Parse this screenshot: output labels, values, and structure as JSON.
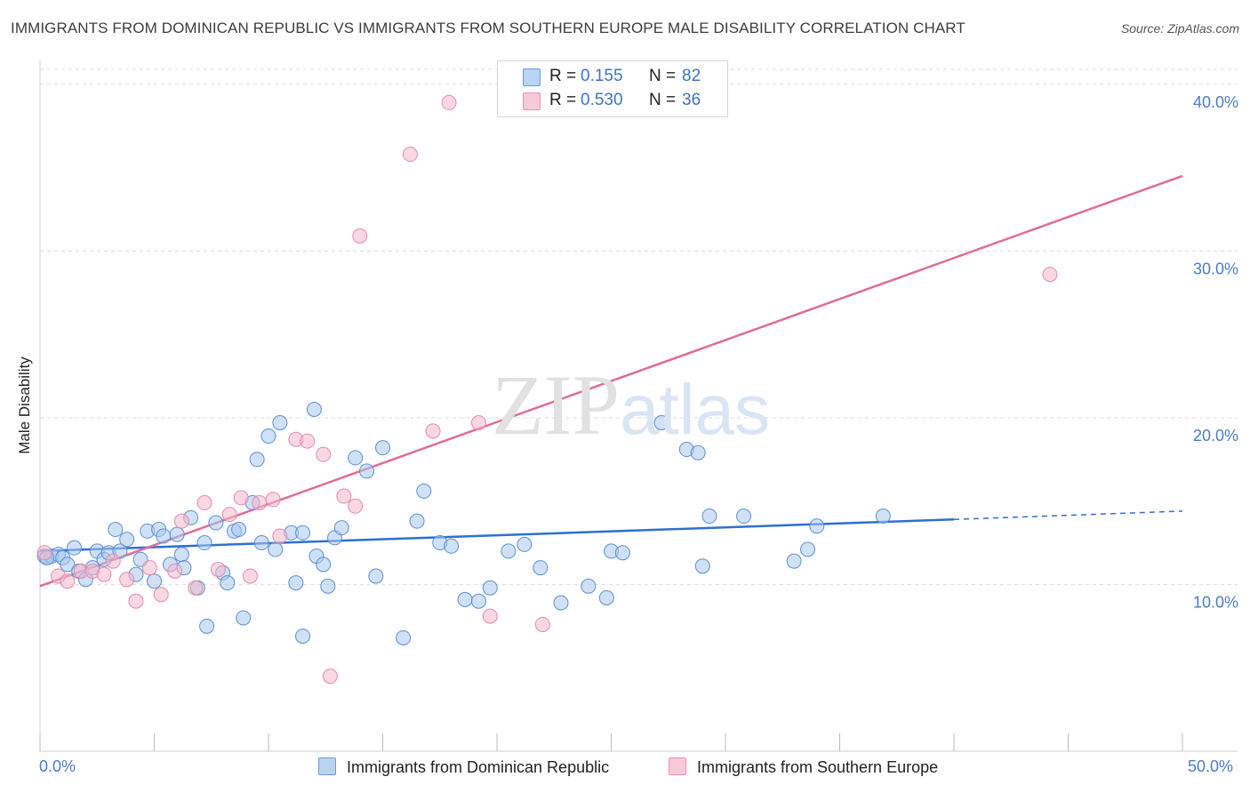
{
  "title": "IMMIGRANTS FROM DOMINICAN REPUBLIC VS IMMIGRANTS FROM SOUTHERN EUROPE MALE DISABILITY CORRELATION CHART",
  "source": "Source: ZipAtlas.com",
  "watermark": {
    "zip": "ZIP",
    "atlas": "atlas"
  },
  "legend": {
    "rows": [
      {
        "r_label": "R =",
        "r_value": "0.155",
        "n_label": "N =",
        "n_value": "82"
      },
      {
        "r_label": "R =",
        "r_value": "0.530",
        "n_label": "N =",
        "n_value": "36"
      }
    ]
  },
  "bottom_legend": {
    "series1": "Immigrants from Dominican Republic",
    "series2": "Immigrants from Southern Europe"
  },
  "x_end_labels": {
    "min": "0.0%",
    "max": "50.0%"
  },
  "colors": {
    "blue_fill": "#a9c8ef",
    "blue_stroke": "#5b8fd4",
    "blue_line": "#2f6fcf",
    "pink_fill": "#f5b8cc",
    "pink_stroke": "#e68aa8",
    "pink_line": "#e06c95",
    "grid": "#dddddd",
    "tick_label": "#4a7cc7"
  },
  "chart_data": {
    "type": "scatter",
    "title": "IMMIGRANTS FROM DOMINICAN REPUBLIC VS IMMIGRANTS FROM SOUTHERN EUROPE MALE DISABILITY CORRELATION CHART",
    "xlabel": "",
    "ylabel": "Male Disability",
    "xlim": [
      0,
      50
    ],
    "ylim": [
      0,
      41
    ],
    "y_ticks": [
      10,
      20,
      30,
      40
    ],
    "y_tick_labels": [
      "10.0%",
      "20.0%",
      "30.0%",
      "40.0%"
    ],
    "x_ticks": [
      0,
      5,
      10,
      15,
      20,
      25,
      30,
      35,
      40,
      45,
      50
    ],
    "grid": true,
    "legend_position": "top-center",
    "series": [
      {
        "name": "Immigrants from Dominican Republic",
        "color": "blue",
        "R": 0.155,
        "N": 82,
        "points": [
          [
            0.2,
            11.7
          ],
          [
            0.5,
            11.7
          ],
          [
            0.8,
            11.8
          ],
          [
            1.0,
            11.6
          ],
          [
            1.2,
            11.2
          ],
          [
            1.5,
            12.2
          ],
          [
            1.7,
            10.8
          ],
          [
            2.0,
            10.3
          ],
          [
            2.3,
            11.0
          ],
          [
            2.5,
            12.0
          ],
          [
            2.8,
            11.5
          ],
          [
            3.0,
            11.9
          ],
          [
            3.3,
            13.3
          ],
          [
            3.5,
            12.0
          ],
          [
            3.8,
            12.7
          ],
          [
            4.2,
            10.6
          ],
          [
            4.4,
            11.5
          ],
          [
            4.7,
            13.2
          ],
          [
            5.0,
            10.2
          ],
          [
            5.2,
            13.3
          ],
          [
            5.4,
            12.9
          ],
          [
            5.7,
            11.2
          ],
          [
            6.0,
            13.0
          ],
          [
            6.2,
            11.8
          ],
          [
            6.3,
            11.0
          ],
          [
            6.6,
            14.0
          ],
          [
            6.9,
            9.8
          ],
          [
            7.2,
            12.5
          ],
          [
            7.3,
            7.5
          ],
          [
            7.7,
            13.7
          ],
          [
            8.0,
            10.7
          ],
          [
            8.2,
            10.1
          ],
          [
            8.5,
            13.2
          ],
          [
            8.7,
            13.3
          ],
          [
            8.9,
            8.0
          ],
          [
            9.3,
            14.9
          ],
          [
            9.5,
            17.5
          ],
          [
            9.7,
            12.5
          ],
          [
            10.0,
            18.9
          ],
          [
            10.3,
            12.1
          ],
          [
            10.5,
            19.7
          ],
          [
            11.0,
            13.1
          ],
          [
            11.2,
            10.1
          ],
          [
            11.5,
            13.1
          ],
          [
            11.5,
            6.9
          ],
          [
            12.0,
            20.5
          ],
          [
            12.1,
            11.7
          ],
          [
            12.4,
            11.2
          ],
          [
            12.6,
            9.9
          ],
          [
            12.9,
            12.8
          ],
          [
            13.2,
            13.4
          ],
          [
            13.8,
            17.6
          ],
          [
            14.3,
            16.8
          ],
          [
            14.7,
            10.5
          ],
          [
            15.0,
            18.2
          ],
          [
            15.9,
            6.8
          ],
          [
            16.5,
            13.8
          ],
          [
            16.8,
            15.6
          ],
          [
            17.5,
            12.5
          ],
          [
            18.0,
            12.3
          ],
          [
            18.6,
            9.1
          ],
          [
            19.2,
            9.0
          ],
          [
            19.7,
            9.8
          ],
          [
            20.5,
            12.0
          ],
          [
            21.2,
            12.4
          ],
          [
            21.9,
            11.0
          ],
          [
            22.8,
            8.9
          ],
          [
            24.0,
            9.9
          ],
          [
            24.8,
            9.2
          ],
          [
            25.0,
            12.0
          ],
          [
            25.5,
            11.9
          ],
          [
            27.2,
            19.7
          ],
          [
            28.3,
            18.1
          ],
          [
            28.8,
            17.9
          ],
          [
            29.0,
            11.1
          ],
          [
            29.3,
            14.1
          ],
          [
            30.8,
            14.1
          ],
          [
            33.0,
            11.4
          ],
          [
            33.6,
            12.1
          ],
          [
            34.0,
            13.5
          ],
          [
            36.9,
            14.1
          ],
          [
            0.3,
            11.6
          ]
        ],
        "trend": {
          "x": [
            0,
            40
          ],
          "y": [
            12.0,
            13.9
          ],
          "dashed_extension": {
            "x": [
              40,
              50
            ],
            "y": [
              13.9,
              14.4
            ]
          }
        }
      },
      {
        "name": "Immigrants from Southern Europe",
        "color": "pink",
        "R": 0.53,
        "N": 36,
        "points": [
          [
            0.2,
            11.9
          ],
          [
            0.8,
            10.5
          ],
          [
            1.2,
            10.2
          ],
          [
            1.8,
            10.8
          ],
          [
            2.3,
            10.8
          ],
          [
            2.8,
            10.6
          ],
          [
            3.2,
            11.4
          ],
          [
            3.8,
            10.3
          ],
          [
            4.2,
            9.0
          ],
          [
            4.8,
            11.0
          ],
          [
            5.3,
            9.4
          ],
          [
            5.9,
            10.8
          ],
          [
            6.2,
            13.8
          ],
          [
            6.8,
            9.8
          ],
          [
            7.2,
            14.9
          ],
          [
            7.8,
            10.9
          ],
          [
            8.3,
            14.2
          ],
          [
            8.8,
            15.2
          ],
          [
            9.2,
            10.5
          ],
          [
            9.6,
            14.9
          ],
          [
            10.2,
            15.1
          ],
          [
            10.5,
            12.9
          ],
          [
            11.2,
            18.7
          ],
          [
            11.7,
            18.6
          ],
          [
            12.4,
            17.8
          ],
          [
            12.7,
            4.5
          ],
          [
            13.3,
            15.3
          ],
          [
            13.8,
            14.7
          ],
          [
            14.0,
            30.9
          ],
          [
            16.2,
            35.8
          ],
          [
            17.2,
            19.2
          ],
          [
            17.9,
            38.9
          ],
          [
            19.2,
            19.7
          ],
          [
            19.7,
            8.1
          ],
          [
            22.0,
            7.6
          ],
          [
            44.2,
            28.6
          ]
        ],
        "trend": {
          "x": [
            0,
            50
          ],
          "y": [
            9.9,
            34.5
          ]
        }
      }
    ]
  }
}
